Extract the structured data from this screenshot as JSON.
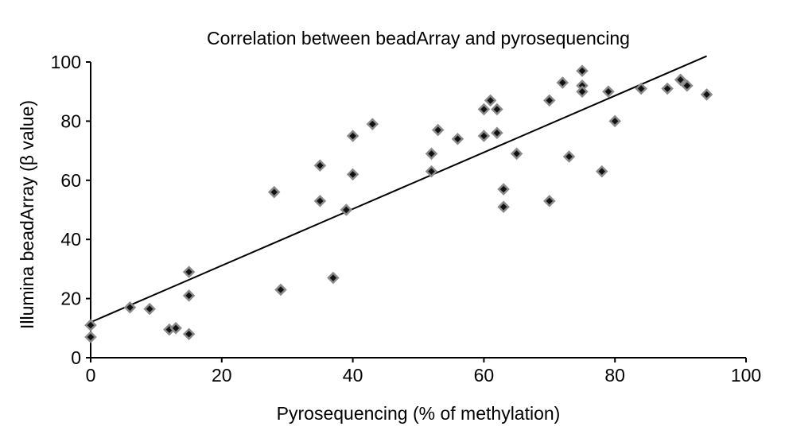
{
  "chart_data": {
    "type": "scatter",
    "title": "Correlation between beadArray and pyrosequencing",
    "xlabel": "Pyrosequencing (% of methylation)",
    "ylabel": "Illumina beadArray (β value)",
    "xlim": [
      0,
      100
    ],
    "ylim": [
      0,
      100
    ],
    "xticks": [
      "0",
      "20",
      "40",
      "60",
      "80",
      "100"
    ],
    "yticks": [
      "0",
      "20",
      "40",
      "60",
      "80",
      "100"
    ],
    "grid": false,
    "legend": "none",
    "marker": "diamond",
    "marker_color": "#111111",
    "marker_edge_color": "#8a8a8a",
    "points": [
      {
        "x": 0,
        "y": 11
      },
      {
        "x": 0,
        "y": 7
      },
      {
        "x": 6,
        "y": 17
      },
      {
        "x": 9,
        "y": 16.5
      },
      {
        "x": 12,
        "y": 9.5
      },
      {
        "x": 13,
        "y": 10
      },
      {
        "x": 15,
        "y": 8
      },
      {
        "x": 15,
        "y": 21
      },
      {
        "x": 15,
        "y": 29
      },
      {
        "x": 28,
        "y": 56
      },
      {
        "x": 29,
        "y": 23
      },
      {
        "x": 35,
        "y": 65
      },
      {
        "x": 35,
        "y": 53
      },
      {
        "x": 37,
        "y": 27
      },
      {
        "x": 39,
        "y": 50
      },
      {
        "x": 40,
        "y": 75
      },
      {
        "x": 40,
        "y": 62
      },
      {
        "x": 43,
        "y": 79
      },
      {
        "x": 52,
        "y": 69
      },
      {
        "x": 52,
        "y": 63
      },
      {
        "x": 53,
        "y": 77
      },
      {
        "x": 56,
        "y": 74
      },
      {
        "x": 60,
        "y": 84
      },
      {
        "x": 60,
        "y": 75
      },
      {
        "x": 61,
        "y": 87
      },
      {
        "x": 62,
        "y": 84
      },
      {
        "x": 62,
        "y": 76
      },
      {
        "x": 63,
        "y": 57
      },
      {
        "x": 63,
        "y": 51
      },
      {
        "x": 65,
        "y": 69
      },
      {
        "x": 70,
        "y": 87
      },
      {
        "x": 70,
        "y": 53
      },
      {
        "x": 72,
        "y": 93
      },
      {
        "x": 73,
        "y": 68
      },
      {
        "x": 75,
        "y": 97
      },
      {
        "x": 75,
        "y": 92
      },
      {
        "x": 75,
        "y": 90
      },
      {
        "x": 78,
        "y": 63
      },
      {
        "x": 79,
        "y": 90
      },
      {
        "x": 80,
        "y": 80
      },
      {
        "x": 84,
        "y": 91
      },
      {
        "x": 88,
        "y": 91
      },
      {
        "x": 90,
        "y": 94
      },
      {
        "x": 91,
        "y": 92
      },
      {
        "x": 94,
        "y": 89
      }
    ],
    "trendline": {
      "x": [
        0,
        94
      ],
      "y": [
        12,
        102
      ]
    }
  }
}
